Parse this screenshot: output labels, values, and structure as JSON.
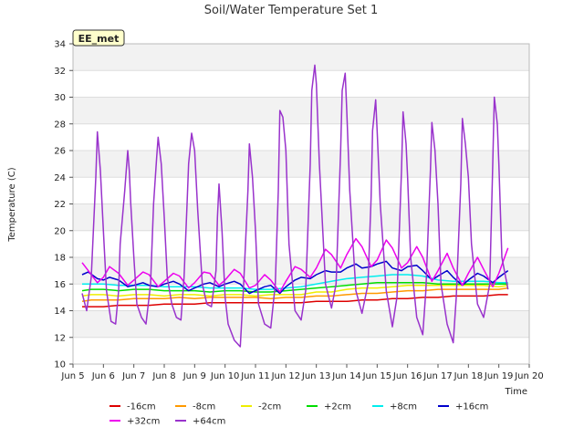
{
  "chart_data": {
    "type": "line",
    "title": "Soil/Water Temperature Set 1",
    "xlabel": "Time",
    "ylabel": "Temperature (C)",
    "station_label": "EE_met",
    "xlim": [
      5,
      20
    ],
    "ylim": [
      10,
      34
    ],
    "x_ticks": [
      5,
      6,
      7,
      8,
      9,
      10,
      11,
      12,
      13,
      14,
      15,
      16,
      17,
      18,
      19,
      20
    ],
    "x_tick_labels": [
      "Jun 5",
      "Jun 6",
      "Jun 7",
      "Jun 8",
      "Jun 9",
      "Jun 10",
      "Jun 11",
      "Jun 12",
      "Jun 13",
      "Jun 14",
      "Jun 15",
      "Jun 16",
      "Jun 17",
      "Jun 18",
      "Jun 19",
      "Jun 20"
    ],
    "y_ticks": [
      10,
      12,
      14,
      16,
      18,
      20,
      22,
      24,
      26,
      28,
      30,
      32,
      34
    ],
    "background_bands": true,
    "legend_position": "bottom",
    "series": [
      {
        "name": "-16cm",
        "color": "#dd0000",
        "x": [
          5.3,
          5.6,
          6.0,
          6.5,
          7.0,
          7.5,
          8.0,
          8.5,
          9.0,
          9.5,
          10.0,
          10.5,
          11.0,
          11.5,
          12.0,
          12.5,
          13.0,
          13.5,
          14.0,
          14.5,
          15.0,
          15.5,
          16.0,
          16.5,
          17.0,
          17.5,
          18.0,
          18.5,
          19.0,
          19.3
        ],
        "y": [
          14.3,
          14.3,
          14.3,
          14.4,
          14.4,
          14.4,
          14.5,
          14.5,
          14.5,
          14.6,
          14.6,
          14.6,
          14.6,
          14.6,
          14.6,
          14.6,
          14.7,
          14.7,
          14.7,
          14.8,
          14.8,
          14.9,
          14.9,
          15.0,
          15.0,
          15.1,
          15.1,
          15.1,
          15.2,
          15.2
        ]
      },
      {
        "name": "-8cm",
        "color": "#ff9900",
        "x": [
          5.3,
          5.6,
          6.0,
          6.5,
          7.0,
          7.5,
          8.0,
          8.5,
          9.0,
          9.5,
          10.0,
          10.5,
          11.0,
          11.5,
          12.0,
          12.5,
          13.0,
          13.5,
          14.0,
          14.5,
          15.0,
          15.5,
          16.0,
          16.5,
          17.0,
          17.5,
          18.0,
          18.5,
          19.0,
          19.3
        ],
        "y": [
          14.7,
          14.8,
          14.8,
          14.8,
          14.9,
          14.9,
          14.9,
          15.0,
          14.9,
          15.0,
          15.0,
          15.0,
          15.0,
          14.9,
          15.0,
          15.0,
          15.1,
          15.1,
          15.2,
          15.3,
          15.3,
          15.4,
          15.5,
          15.5,
          15.6,
          15.6,
          15.6,
          15.6,
          15.6,
          15.7
        ]
      },
      {
        "name": "-2cm",
        "color": "#eeee00",
        "x": [
          5.3,
          5.6,
          6.0,
          6.5,
          7.0,
          7.5,
          8.0,
          8.5,
          9.0,
          9.5,
          10.0,
          10.5,
          11.0,
          11.5,
          12.0,
          12.5,
          13.0,
          13.5,
          14.0,
          14.5,
          15.0,
          15.5,
          16.0,
          16.5,
          17.0,
          17.5,
          18.0,
          18.5,
          19.0,
          19.3
        ],
        "y": [
          15.1,
          15.2,
          15.2,
          15.1,
          15.2,
          15.2,
          15.1,
          15.2,
          15.2,
          15.1,
          15.2,
          15.2,
          15.1,
          15.2,
          15.2,
          15.2,
          15.4,
          15.4,
          15.6,
          15.7,
          15.7,
          15.8,
          15.9,
          15.9,
          15.9,
          15.9,
          15.9,
          15.9,
          15.8,
          15.9
        ]
      },
      {
        "name": "+2cm",
        "color": "#00dd00",
        "x": [
          5.3,
          5.6,
          6.0,
          6.5,
          7.0,
          7.5,
          8.0,
          8.5,
          9.0,
          9.5,
          10.0,
          10.5,
          11.0,
          11.5,
          12.0,
          12.5,
          13.0,
          13.5,
          14.0,
          14.5,
          15.0,
          15.5,
          16.0,
          16.5,
          17.0,
          17.5,
          18.0,
          18.5,
          19.0,
          19.3
        ],
        "y": [
          15.5,
          15.6,
          15.6,
          15.5,
          15.6,
          15.6,
          15.5,
          15.5,
          15.5,
          15.4,
          15.5,
          15.5,
          15.4,
          15.4,
          15.5,
          15.6,
          15.7,
          15.8,
          15.9,
          16.0,
          16.1,
          16.1,
          16.1,
          16.1,
          16.0,
          16.0,
          16.0,
          16.0,
          16.0,
          16.0
        ]
      },
      {
        "name": "+8cm",
        "color": "#00eeee",
        "x": [
          5.3,
          5.6,
          6.0,
          6.5,
          7.0,
          7.5,
          8.0,
          8.5,
          9.0,
          9.5,
          10.0,
          10.5,
          11.0,
          11.5,
          12.0,
          12.5,
          13.0,
          13.5,
          14.0,
          14.5,
          15.0,
          15.5,
          16.0,
          16.5,
          17.0,
          17.5,
          18.0,
          18.5,
          19.0,
          19.3
        ],
        "y": [
          16.0,
          16.0,
          16.0,
          15.9,
          15.9,
          15.9,
          15.8,
          15.8,
          15.8,
          15.7,
          15.7,
          15.7,
          15.6,
          15.6,
          15.7,
          15.8,
          16.0,
          16.2,
          16.4,
          16.5,
          16.6,
          16.7,
          16.7,
          16.6,
          16.3,
          16.2,
          16.2,
          16.2,
          16.1,
          16.1
        ]
      },
      {
        "name": "+16cm",
        "color": "#0000cc",
        "x": [
          5.3,
          5.5,
          5.8,
          6.0,
          6.2,
          6.5,
          6.8,
          7.0,
          7.3,
          7.5,
          7.8,
          8.0,
          8.3,
          8.5,
          8.8,
          9.0,
          9.3,
          9.5,
          9.8,
          10.0,
          10.3,
          10.5,
          10.8,
          11.0,
          11.3,
          11.5,
          11.8,
          12.0,
          12.3,
          12.5,
          12.8,
          13.0,
          13.3,
          13.5,
          13.8,
          14.0,
          14.3,
          14.5,
          14.8,
          15.0,
          15.3,
          15.5,
          15.8,
          16.0,
          16.3,
          16.5,
          16.8,
          17.0,
          17.3,
          17.5,
          17.8,
          18.0,
          18.3,
          18.5,
          18.8,
          19.0,
          19.3
        ],
        "y": [
          16.7,
          16.9,
          16.4,
          16.3,
          16.5,
          16.3,
          15.8,
          15.9,
          16.1,
          15.9,
          15.8,
          16.0,
          16.2,
          16.0,
          15.5,
          15.7,
          16.0,
          16.1,
          15.8,
          16.0,
          16.2,
          16.0,
          15.3,
          15.5,
          15.8,
          15.9,
          15.3,
          15.8,
          16.3,
          16.5,
          16.4,
          16.7,
          17.0,
          16.9,
          16.9,
          17.2,
          17.5,
          17.2,
          17.3,
          17.5,
          17.7,
          17.2,
          17.0,
          17.3,
          17.4,
          17.0,
          16.3,
          16.6,
          17.0,
          16.5,
          15.9,
          16.3,
          16.8,
          16.6,
          16.1,
          16.5,
          17.0
        ]
      },
      {
        "name": "+32cm",
        "color": "#ee00ee",
        "x": [
          5.3,
          5.5,
          5.8,
          6.0,
          6.2,
          6.5,
          6.8,
          7.0,
          7.3,
          7.5,
          7.8,
          8.0,
          8.3,
          8.5,
          8.8,
          9.0,
          9.3,
          9.5,
          9.8,
          10.0,
          10.3,
          10.5,
          10.8,
          11.0,
          11.3,
          11.5,
          11.8,
          12.0,
          12.3,
          12.5,
          12.8,
          13.0,
          13.3,
          13.5,
          13.8,
          14.0,
          14.3,
          14.5,
          14.8,
          15.0,
          15.3,
          15.5,
          15.8,
          16.0,
          16.3,
          16.5,
          16.8,
          17.0,
          17.3,
          17.5,
          17.8,
          18.0,
          18.3,
          18.5,
          18.8,
          19.0,
          19.3
        ],
        "y": [
          17.6,
          17.0,
          16.1,
          16.5,
          17.3,
          16.8,
          15.9,
          16.3,
          16.9,
          16.7,
          15.8,
          16.2,
          16.8,
          16.6,
          15.7,
          16.1,
          16.9,
          16.8,
          15.9,
          16.3,
          17.1,
          16.8,
          15.7,
          15.9,
          16.7,
          16.3,
          15.4,
          16.2,
          17.3,
          17.1,
          16.5,
          17.2,
          18.6,
          18.2,
          17.2,
          18.2,
          19.4,
          18.8,
          17.3,
          17.8,
          19.3,
          18.7,
          17.2,
          17.6,
          18.8,
          18.0,
          16.2,
          17.0,
          18.3,
          17.2,
          15.9,
          16.8,
          18.0,
          17.1,
          15.8,
          16.8,
          18.7
        ]
      },
      {
        "name": "+64cm",
        "color": "#9933cc",
        "x": [
          5.3,
          5.45,
          5.6,
          5.75,
          5.8,
          5.85,
          5.9,
          6.0,
          6.1,
          6.25,
          6.4,
          6.5,
          6.55,
          6.7,
          6.8,
          6.85,
          6.9,
          7.0,
          7.1,
          7.25,
          7.4,
          7.55,
          7.65,
          7.75,
          7.8,
          7.9,
          8.0,
          8.1,
          8.25,
          8.4,
          8.55,
          8.65,
          8.75,
          8.8,
          8.9,
          9.0,
          9.1,
          9.25,
          9.4,
          9.55,
          9.7,
          9.75,
          9.8,
          9.9,
          10.0,
          10.1,
          10.3,
          10.5,
          10.6,
          10.75,
          10.8,
          10.9,
          11.0,
          11.1,
          11.3,
          11.5,
          11.65,
          11.75,
          11.8,
          11.9,
          12.0,
          12.1,
          12.3,
          12.5,
          12.65,
          12.8,
          12.85,
          12.95,
          13.0,
          13.1,
          13.3,
          13.5,
          13.65,
          13.8,
          13.85,
          13.95,
          14.0,
          14.1,
          14.3,
          14.5,
          14.7,
          14.8,
          14.85,
          14.95,
          15.0,
          15.1,
          15.3,
          15.5,
          15.65,
          15.8,
          15.85,
          15.95,
          16.0,
          16.1,
          16.3,
          16.5,
          16.6,
          16.75,
          16.8,
          16.9,
          17.0,
          17.1,
          17.3,
          17.5,
          17.6,
          17.75,
          17.8,
          17.9,
          18.0,
          18.1,
          18.3,
          18.5,
          18.7,
          18.8,
          18.85,
          18.95,
          19.0,
          19.1,
          19.3
        ],
        "y": [
          15.3,
          14.0,
          16.5,
          24.0,
          27.4,
          26.0,
          24.5,
          20.0,
          15.5,
          13.2,
          13.0,
          15.5,
          19.0,
          23.0,
          26.0,
          24.5,
          22.0,
          18.0,
          14.5,
          13.5,
          13.0,
          16.0,
          22.0,
          25.5,
          27.0,
          25.0,
          21.0,
          16.5,
          14.5,
          13.5,
          13.3,
          16.5,
          22.0,
          25.0,
          27.3,
          26.0,
          21.5,
          16.0,
          14.5,
          14.3,
          17.0,
          21.0,
          23.5,
          20.0,
          15.0,
          13.0,
          11.8,
          11.3,
          15.5,
          23.0,
          26.5,
          24.0,
          20.0,
          14.5,
          13.0,
          12.7,
          16.0,
          23.0,
          29.0,
          28.5,
          26.0,
          19.0,
          14.0,
          13.3,
          15.5,
          25.0,
          30.5,
          32.4,
          31.0,
          25.0,
          16.0,
          14.2,
          16.0,
          26.0,
          30.5,
          31.8,
          29.0,
          23.0,
          15.5,
          13.8,
          16.0,
          22.5,
          27.5,
          29.8,
          27.5,
          22.0,
          15.5,
          12.8,
          15.0,
          24.5,
          28.9,
          26.5,
          24.0,
          18.0,
          13.5,
          12.2,
          15.5,
          24.5,
          28.1,
          26.0,
          22.0,
          16.0,
          13.0,
          11.6,
          15.0,
          23.5,
          28.4,
          26.5,
          24.0,
          19.0,
          14.5,
          13.5,
          16.0,
          25.0,
          30.0,
          28.0,
          25.0,
          18.0,
          15.6
        ]
      }
    ]
  }
}
